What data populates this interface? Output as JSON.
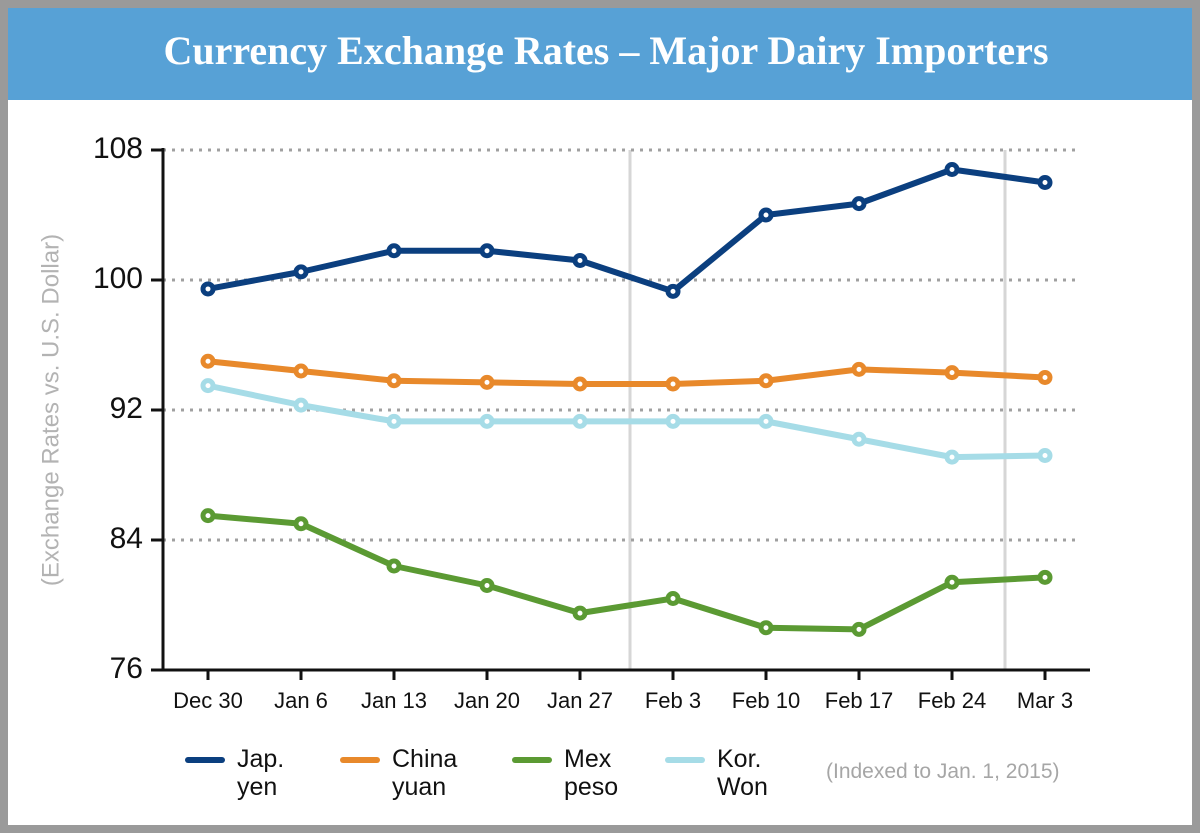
{
  "chart_data": {
    "type": "line",
    "title": "Currency Exchange Rates – Major Dairy Importers",
    "y_label": "(Exchange Rates vs. U.S. Dollar)",
    "note": "(Indexed to Jan. 1, 2015)",
    "categories": [
      "Dec 30",
      "Jan 6",
      "Jan 13",
      "Jan 20",
      "Jan 27",
      "Feb 3",
      "Feb 10",
      "Feb 17",
      "Feb 24",
      "Mar 3"
    ],
    "series": [
      {
        "name": "Jap. yen",
        "color": "#0b3f7f",
        "values": [
          99.45,
          100.5,
          101.8,
          101.8,
          101.2,
          99.3,
          104.0,
          104.7,
          106.8,
          106.0
        ]
      },
      {
        "name": "China yuan",
        "color": "#e8892b",
        "values": [
          95.0,
          94.4,
          93.8,
          93.7,
          93.6,
          93.6,
          93.8,
          94.5,
          94.3,
          94.0
        ]
      },
      {
        "name": "Mex peso",
        "color": "#5b9a33",
        "values": [
          85.5,
          85.0,
          82.4,
          81.2,
          79.5,
          80.4,
          78.6,
          78.5,
          81.4,
          81.7
        ]
      },
      {
        "name": "Kor. Won",
        "color": "#a6dce7",
        "values": [
          93.5,
          92.3,
          91.3,
          91.3,
          91.3,
          91.3,
          91.3,
          90.2,
          89.1,
          89.2
        ]
      }
    ],
    "ylim": [
      76,
      108
    ],
    "yticks": [
      76,
      84,
      92,
      100,
      108
    ],
    "grid": true
  }
}
